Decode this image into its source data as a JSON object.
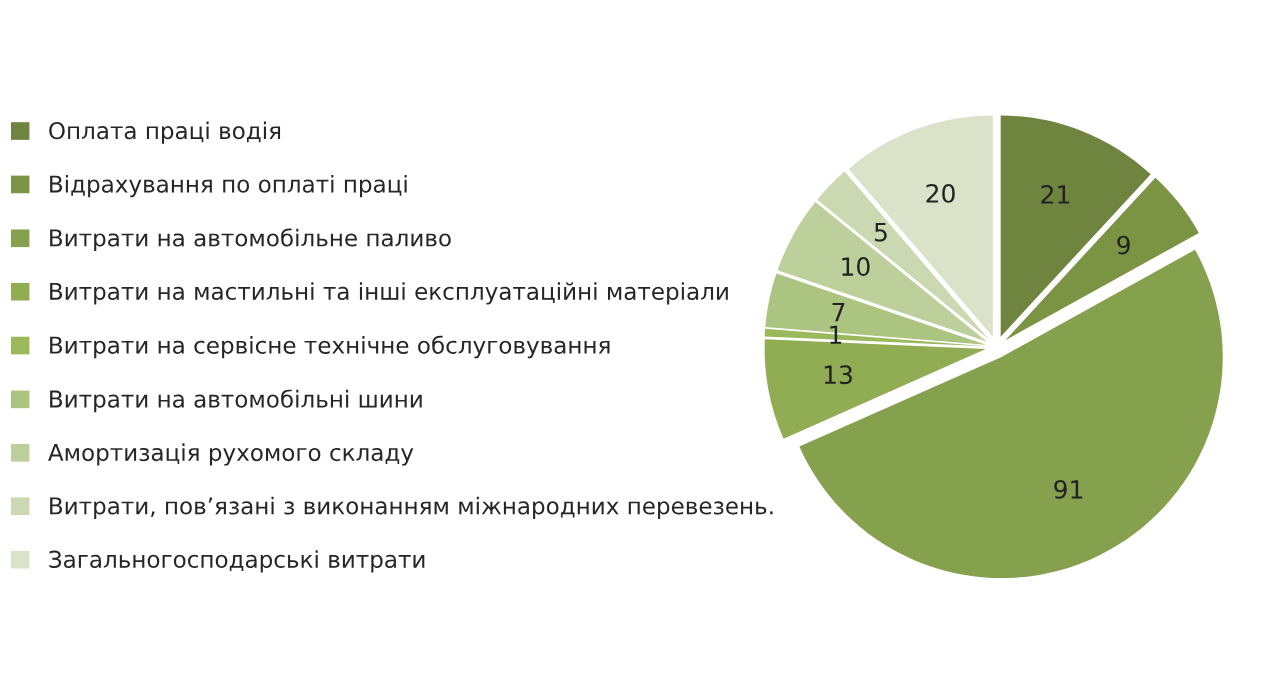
{
  "chart_data": {
    "type": "pie",
    "categories": [
      "Оплата праці водія",
      "Відрахування по оплаті праці",
      "Витрати на автомобільне паливо",
      "Витрати на мастильні та інші експлуатаційні матеріали",
      "Витрати на сервісне технічне обслуговування",
      "Витрати на автомобільні шини",
      "Амортизація рухомого складу",
      "Витрати, пов’язані з виконанням міжнародних перевезень.",
      "Загальногосподарські витрати"
    ],
    "values": [
      21,
      9,
      91,
      13,
      1,
      7,
      10,
      5,
      20
    ],
    "colors": [
      "#6f843f",
      "#7a9444",
      "#86a14d",
      "#90ad53",
      "#9bb85a",
      "#abc47f",
      "#bdd09b",
      "#cbd9b2",
      "#dae3c9"
    ],
    "data_labels": true,
    "legend": "left"
  }
}
